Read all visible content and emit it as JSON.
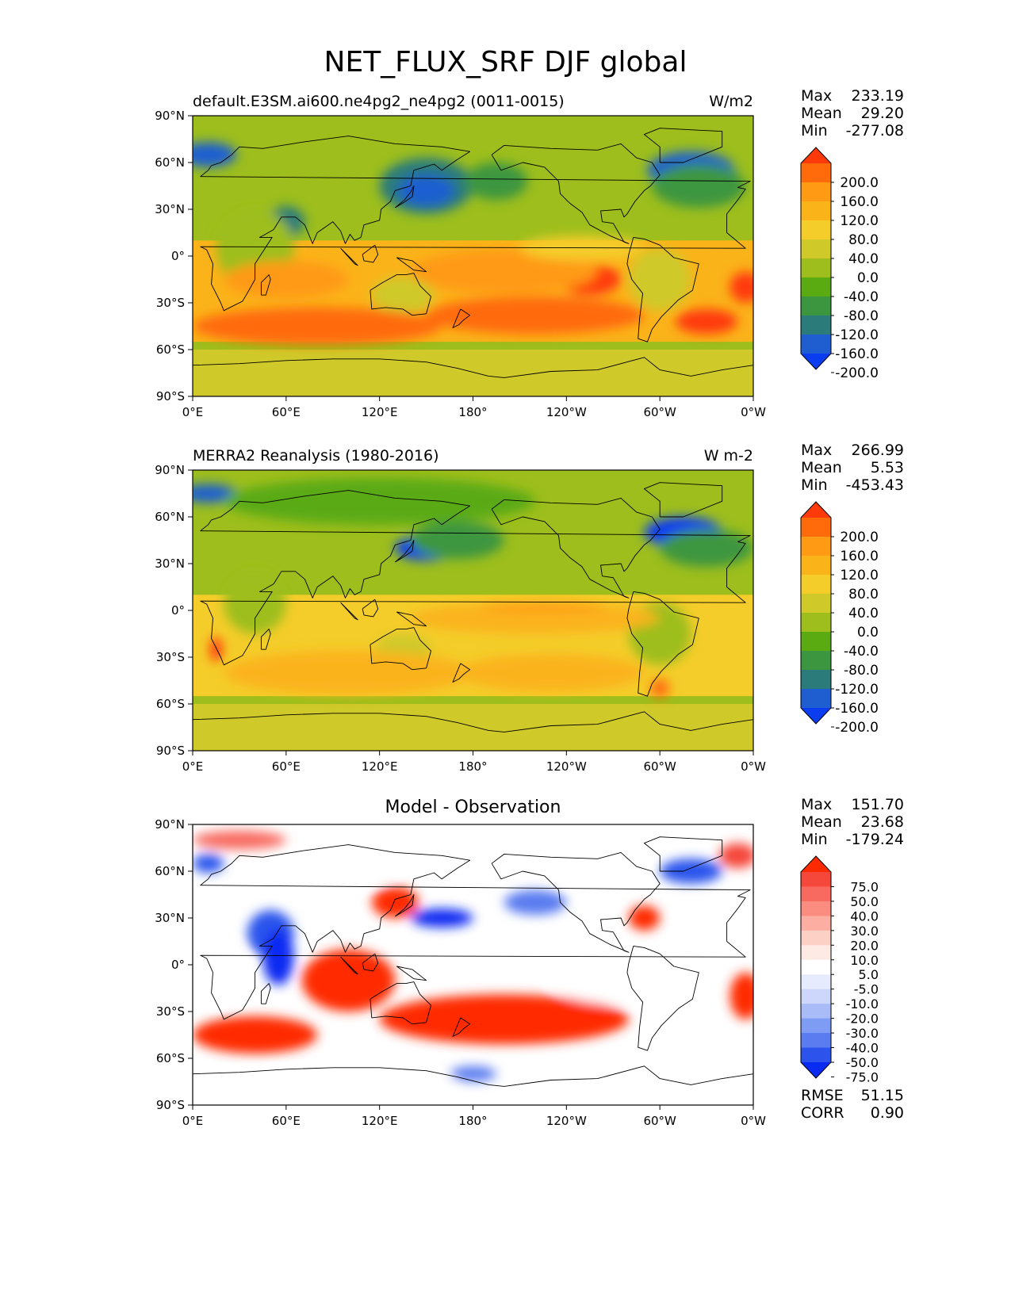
{
  "title": "NET_FLUX_SRF DJF global",
  "x_tick_labels": [
    "0°E",
    "60°E",
    "120°E",
    "180°",
    "120°W",
    "60°W",
    "0°W"
  ],
  "y_tick_labels": [
    "90°N",
    "60°N",
    "30°N",
    "0°",
    "30°S",
    "60°S",
    "90°S"
  ],
  "panels": [
    {
      "label_left": "default.E3SM.ai600.ne4pg2_ne4pg2 (0011-0015)",
      "label_right": "W/m2",
      "label_center": "",
      "stats": [
        {
          "name": "Max",
          "value": "233.19"
        },
        {
          "name": "Mean",
          "value": "29.20"
        },
        {
          "name": "Min",
          "value": "-277.08"
        }
      ],
      "colorbar": {
        "labels": [
          "200.0",
          "160.0",
          "120.0",
          "80.0",
          "40.0",
          "0.0",
          "-40.0",
          "-80.0",
          "-120.0",
          "-160.0",
          "-200.0"
        ],
        "colors": [
          "#ff3a0a",
          "#ff6a0a",
          "#ff9a14",
          "#fbb31a",
          "#f4cd2a",
          "#cfc929",
          "#9dbe1c",
          "#5aaa12",
          "#3c9640",
          "#2a7b7a",
          "#1e5ed0",
          "#0a3cf0"
        ]
      }
    },
    {
      "label_left": "MERRA2 Reanalysis (1980-2016)",
      "label_right": "W m-2",
      "label_center": "",
      "stats": [
        {
          "name": "Max",
          "value": "266.99"
        },
        {
          "name": "Mean",
          "value": "5.53"
        },
        {
          "name": "Min",
          "value": "-453.43"
        }
      ],
      "colorbar": {
        "labels": [
          "200.0",
          "160.0",
          "120.0",
          "80.0",
          "40.0",
          "0.0",
          "-40.0",
          "-80.0",
          "-120.0",
          "-160.0",
          "-200.0"
        ],
        "colors": [
          "#ff3a0a",
          "#ff6a0a",
          "#ff9a14",
          "#fbb31a",
          "#f4cd2a",
          "#cfc929",
          "#9dbe1c",
          "#5aaa12",
          "#3c9640",
          "#2a7b7a",
          "#1e5ed0",
          "#0a3cf0"
        ]
      }
    },
    {
      "label_left": "",
      "label_right": "",
      "label_center": "Model - Observation",
      "stats": [
        {
          "name": "Max",
          "value": "151.70"
        },
        {
          "name": "Mean",
          "value": "23.68"
        },
        {
          "name": "Min",
          "value": "-179.24"
        }
      ],
      "colorbar": {
        "labels": [
          "75.0",
          "50.0",
          "40.0",
          "30.0",
          "20.0",
          "10.0",
          "5.0",
          "-5.0",
          "-10.0",
          "-20.0",
          "-30.0",
          "-40.0",
          "-50.0",
          "-75.0"
        ],
        "colors": [
          "#ff2a00",
          "#f5473a",
          "#f86a60",
          "#fa8c80",
          "#fcaea2",
          "#fdd0c6",
          "#feeae4",
          "#ffffff",
          "#e6ecfd",
          "#cdd7fb",
          "#a9bcf8",
          "#7f9cf4",
          "#5a7cf0",
          "#2c54ec",
          "#0a2cf2"
        ]
      },
      "metrics": [
        {
          "name": "RMSE",
          "value": "51.15"
        },
        {
          "name": "CORR",
          "value": "0.90"
        }
      ]
    }
  ]
}
